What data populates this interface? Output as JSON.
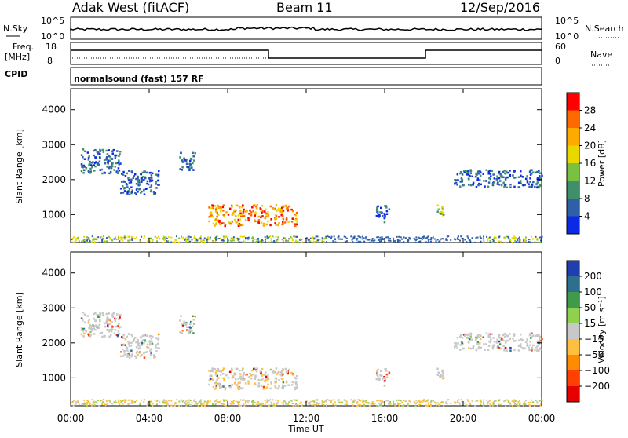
{
  "header": {
    "radar_title": "Adak West (fitACF)",
    "beam": "Beam 11",
    "date": "12/Sep/2016"
  },
  "panels": {
    "nsky_label": "N.Sky",
    "nsearch_label": "N.Search",
    "nsky_ticks": [
      "10^5",
      "10^0"
    ],
    "nsearch_ticks": [
      "10^5",
      "10^0"
    ],
    "freq_label_1": "Freq.",
    "freq_label_2": "[MHz]",
    "freq_ticks": [
      "18",
      "8"
    ],
    "nave_label": "Nave",
    "nave_ticks": [
      "60",
      "0"
    ],
    "cpid_label": "CPID",
    "cpid_text": "normalsound (fast) 157 RF"
  },
  "chart_data": [
    {
      "type": "heatmap",
      "name": "power",
      "ylabel": "Slant Range [km]",
      "xlabel": "",
      "y_ticks": [
        "1000",
        "2000",
        "3000",
        "4000"
      ],
      "ylim": [
        200,
        4600
      ],
      "xlim": [
        0,
        24
      ],
      "colorbar_label": "Power [dB]",
      "colorbar_ticks": [
        "28",
        "24",
        "20",
        "16",
        "12",
        "8",
        "4"
      ],
      "colorbar_colors": [
        "#ff0000",
        "#ff6a00",
        "#ffaa00",
        "#e8d800",
        "#7ac142",
        "#3f8f6a",
        "#2e5fa8",
        "#0a2ae6"
      ],
      "regions": [
        {
          "t0": 0.5,
          "t1": 2.5,
          "r0": 2200,
          "r1": 2900,
          "level": "low"
        },
        {
          "t0": 2.5,
          "t1": 4.5,
          "r0": 1600,
          "r1": 2300,
          "level": "low"
        },
        {
          "t0": 5.5,
          "t1": 6.3,
          "r0": 2300,
          "r1": 2800,
          "level": "low"
        },
        {
          "t0": 7.0,
          "t1": 11.5,
          "r0": 700,
          "r1": 1300,
          "level": "high"
        },
        {
          "t0": 15.5,
          "t1": 16.2,
          "r0": 800,
          "r1": 1300,
          "level": "low"
        },
        {
          "t0": 18.5,
          "t1": 19.0,
          "r0": 1000,
          "r1": 1300,
          "level": "mid"
        },
        {
          "t0": 19.5,
          "t1": 24.0,
          "r0": 1800,
          "r1": 2300,
          "level": "low"
        }
      ]
    },
    {
      "type": "heatmap",
      "name": "velocity",
      "ylabel": "Slant Range [km]",
      "xlabel": "Time UT",
      "y_ticks": [
        "1000",
        "2000",
        "3000",
        "4000"
      ],
      "ylim": [
        200,
        4600
      ],
      "xlim": [
        0,
        24
      ],
      "x_ticks": [
        "00:00",
        "04:00",
        "08:00",
        "12:00",
        "16:00",
        "20:00",
        "00:00"
      ],
      "colorbar_label": "Velocity [m s⁻¹]",
      "colorbar_ticks": [
        "200",
        "100",
        "50",
        "15",
        "−15",
        "−50",
        "−100",
        "−200"
      ],
      "colorbar_colors": [
        "#1f3fb0",
        "#2e6e8e",
        "#3f9a4a",
        "#8fd14f",
        "#c8c8c8",
        "#ffbf3f",
        "#ff8c00",
        "#ff4000",
        "#e60000"
      ]
    }
  ]
}
